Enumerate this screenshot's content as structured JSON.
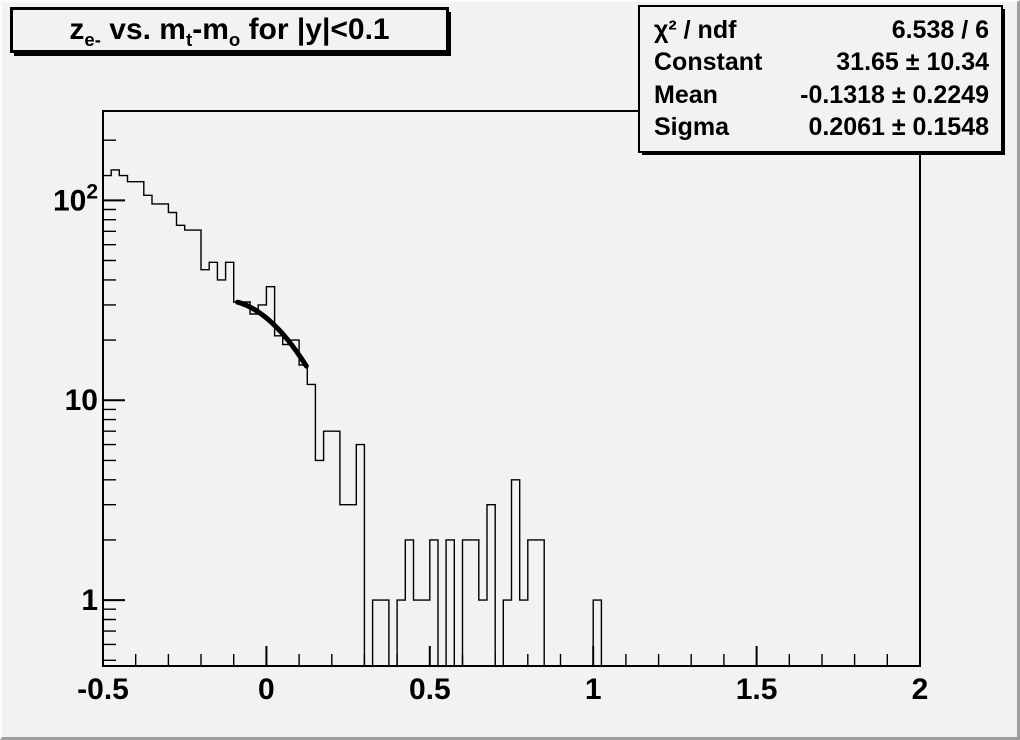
{
  "colors": {
    "background": "#f2f2f2",
    "line": "#000000",
    "bevel_highlight": "#fcfcfc",
    "bevel_shadow": "#9e9e9e"
  },
  "title": {
    "plain": "z_{e-} vs. m_{t}-m_{o} for |y|<0.1",
    "segments": [
      [
        "t",
        "z"
      ],
      [
        "sub",
        "e-"
      ],
      [
        "t",
        " vs. m"
      ],
      [
        "sub",
        "t"
      ],
      [
        "t",
        "-m"
      ],
      [
        "sub",
        "o"
      ],
      [
        "t",
        " for |y|<0.1"
      ]
    ]
  },
  "stats": {
    "rows": [
      {
        "label": "χ² / ndf",
        "value": "6.538 / 6"
      },
      {
        "label": "Constant",
        "value": "31.65 ± 10.34"
      },
      {
        "label": "Mean",
        "value": "-0.1318 ± 0.2249"
      },
      {
        "label": "Sigma",
        "value": "0.2061 ± 0.1548"
      }
    ]
  },
  "chart_data": {
    "type": "bar",
    "subtype": "step-histogram-log-y",
    "title": "z_{e-} vs. m_{t}-m_{o} for |y|<0.1",
    "xlabel": "",
    "ylabel": "",
    "xlim": [
      -0.5,
      2.0
    ],
    "ylim_log": [
      0.468,
      280
    ],
    "y_scale": "log",
    "grid": false,
    "x_start": -0.5,
    "bin_width": 0.025,
    "n_bins": 100,
    "values": [
      133,
      142,
      133,
      124,
      124,
      106,
      96,
      96,
      87,
      75,
      71,
      71,
      45,
      49,
      40,
      49,
      31,
      31,
      27,
      30,
      37,
      21,
      19,
      20,
      15,
      12,
      5,
      7,
      7,
      3,
      3,
      6,
      0,
      1,
      1,
      0,
      1,
      2,
      1,
      1,
      2,
      0,
      2,
      0,
      2,
      2,
      1,
      3,
      0,
      1,
      4,
      1,
      2,
      2,
      0,
      0,
      0,
      0,
      0,
      0,
      1,
      0,
      0,
      0,
      0,
      0,
      0,
      0,
      0,
      0,
      0,
      0,
      0,
      0,
      0,
      0,
      0,
      0,
      0,
      0,
      0,
      0,
      0,
      0,
      0,
      0,
      0,
      0,
      0,
      0,
      0,
      0,
      0,
      0,
      0,
      0,
      0,
      0,
      0,
      0
    ],
    "x_ticks": [
      -0.5,
      0,
      0.5,
      1,
      1.5,
      2
    ],
    "x_tick_labels": [
      "-0.5",
      "0",
      "0.5",
      "1",
      "1.5",
      "2"
    ],
    "x_minor_step": 0.1,
    "y_major_ticks": [
      1,
      10,
      100
    ],
    "y_tick_labels": [
      "1",
      "10",
      "10²"
    ],
    "fit": {
      "type": "gaussian",
      "constant": 31.65,
      "mean": -0.1318,
      "sigma": 0.2061,
      "x_range": [
        -0.088,
        0.122
      ]
    }
  }
}
